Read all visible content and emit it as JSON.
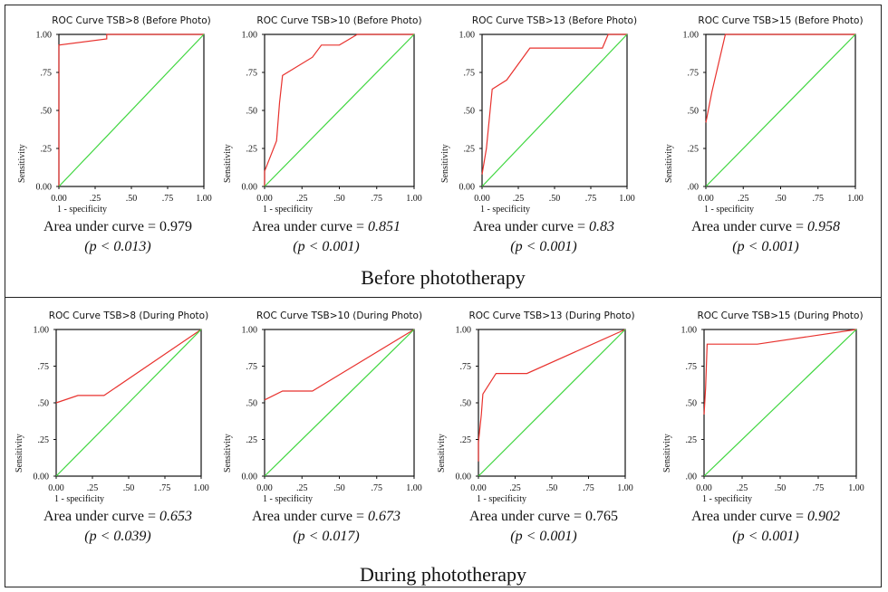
{
  "sections": [
    {
      "label": "Before  phototherapy"
    },
    {
      "label": "During phototherapy"
    }
  ],
  "chart_data": [
    {
      "type": "line",
      "title": "ROC Curve TSB>8 (Before Photo)",
      "xlabel": "1 - specificity",
      "ylabel": "Sensitivity",
      "xticks": [
        "0.00",
        ".25",
        ".50",
        ".75",
        "1.00"
      ],
      "yticks": [
        "0.00",
        ".25",
        ".50",
        ".75",
        "1.00"
      ],
      "xlim": [
        0,
        1
      ],
      "ylim": [
        0,
        1
      ],
      "series": [
        {
          "color": "#e8322e",
          "x": [
            0,
            0,
            0.33,
            0.33,
            1
          ],
          "y": [
            0,
            0.93,
            0.97,
            1,
            1
          ]
        },
        {
          "color": "#3fd63f",
          "x": [
            0,
            1
          ],
          "y": [
            0,
            1
          ]
        }
      ],
      "auc_label": "Area under curve = ",
      "auc": "0.979",
      "auc_italic": false,
      "p": "(p < 0.013)"
    },
    {
      "type": "line",
      "title": "ROC Curve TSB>10 (Before Photo)",
      "xlabel": "1 - specificity",
      "ylabel": "Sensitivity",
      "xticks": [
        "0.00",
        ".25",
        ".50",
        ".75",
        "1.00"
      ],
      "yticks": [
        "0.00",
        ".25",
        ".50",
        ".75",
        "1.00"
      ],
      "xlim": [
        0,
        1
      ],
      "ylim": [
        0,
        1
      ],
      "series": [
        {
          "color": "#e8322e",
          "x": [
            0,
            0,
            0.08,
            0.1,
            0.12,
            0.32,
            0.38,
            0.5,
            0.62,
            1
          ],
          "y": [
            0,
            0.1,
            0.3,
            0.55,
            0.73,
            0.85,
            0.93,
            0.93,
            1,
            1
          ]
        },
        {
          "color": "#3fd63f",
          "x": [
            0,
            1
          ],
          "y": [
            0,
            1
          ]
        }
      ],
      "auc_label": "Area under curve = ",
      "auc": "0.851",
      "auc_italic": true,
      "p": "(p < 0.001)"
    },
    {
      "type": "line",
      "title": "ROC Curve TSB>13 (Before Photo)",
      "xlabel": "1 - specificity",
      "ylabel": "Sensitivity",
      "xticks": [
        "0.00",
        ".25",
        ".50",
        ".75",
        "1.00"
      ],
      "yticks": [
        "0.00",
        ".25",
        ".50",
        ".75",
        "1.00"
      ],
      "xlim": [
        0,
        1
      ],
      "ylim": [
        0,
        1
      ],
      "series": [
        {
          "color": "#e8322e",
          "x": [
            0,
            0.03,
            0.07,
            0.17,
            0.33,
            0.83,
            0.87,
            1
          ],
          "y": [
            0.08,
            0.25,
            0.64,
            0.7,
            0.91,
            0.91,
            1,
            1
          ]
        },
        {
          "color": "#3fd63f",
          "x": [
            0,
            1
          ],
          "y": [
            0,
            1
          ]
        }
      ],
      "auc_label": "Area under curve = ",
      "auc": "0.83",
      "auc_italic": true,
      "p": "(p < 0.001)"
    },
    {
      "type": "line",
      "title": "ROC Curve TSB>15 (Before Photo)",
      "xlabel": "1 - specificity",
      "ylabel": "Sensitivity",
      "xticks": [
        "0.00",
        ".25",
        ".50",
        ".75",
        "1.00"
      ],
      "yticks": [
        ".00",
        ".25",
        ".50",
        ".75",
        "1.00"
      ],
      "xlim": [
        0,
        1
      ],
      "ylim": [
        0,
        1
      ],
      "series": [
        {
          "color": "#e8322e",
          "x": [
            0,
            0.04,
            0.13,
            1
          ],
          "y": [
            0.42,
            0.62,
            1,
            1
          ]
        },
        {
          "color": "#3fd63f",
          "x": [
            0,
            1
          ],
          "y": [
            0,
            1
          ]
        }
      ],
      "auc_label": "Area under curve = ",
      "auc": "0.958",
      "auc_italic": true,
      "p": "(p < 0.001)"
    },
    {
      "type": "line",
      "title": "ROC Curve TSB>8 (During Photo)",
      "xlabel": "1 - specificity",
      "ylabel": "Sensitivity",
      "xticks": [
        "0.00",
        ".25",
        ".50",
        ".75",
        "1.00"
      ],
      "yticks": [
        "0.00",
        ".25",
        ".50",
        ".75",
        "1.00"
      ],
      "xlim": [
        0,
        1
      ],
      "ylim": [
        0,
        1
      ],
      "series": [
        {
          "color": "#e8322e",
          "x": [
            0,
            0.15,
            0.33,
            1
          ],
          "y": [
            0.5,
            0.55,
            0.55,
            1
          ]
        },
        {
          "color": "#3fd63f",
          "x": [
            0,
            1
          ],
          "y": [
            0,
            1
          ]
        }
      ],
      "auc_label": "Area under curve = ",
      "auc": "0.653",
      "auc_italic": true,
      "p": "(p < 0.039)"
    },
    {
      "type": "line",
      "title": "ROC Curve TSB>10 (During Photo)",
      "xlabel": "1 - specificity",
      "ylabel": "Sensitivity",
      "xticks": [
        "0.00",
        ".25",
        ".50",
        ".75",
        "1.00"
      ],
      "yticks": [
        "0.00",
        ".25",
        ".50",
        ".75",
        "1.00"
      ],
      "xlim": [
        0,
        1
      ],
      "ylim": [
        0,
        1
      ],
      "series": [
        {
          "color": "#e8322e",
          "x": [
            0,
            0.12,
            0.32,
            1
          ],
          "y": [
            0.52,
            0.58,
            0.58,
            1
          ]
        },
        {
          "color": "#3fd63f",
          "x": [
            0,
            1
          ],
          "y": [
            0,
            1
          ]
        }
      ],
      "auc_label": "Area under curve = ",
      "auc": "0.673",
      "auc_italic": true,
      "p": "(p < 0.017)"
    },
    {
      "type": "line",
      "title": "ROC Curve TSB>13 (During Photo)",
      "xlabel": "1 - specificity",
      "ylabel": "Sensitivity",
      "xticks": [
        "0.00",
        ".25",
        ".50",
        ".75",
        "1.00"
      ],
      "yticks": [
        "0.00",
        ".25",
        ".50",
        ".75",
        "1.00"
      ],
      "xlim": [
        0,
        1
      ],
      "ylim": [
        0,
        1
      ],
      "series": [
        {
          "color": "#e8322e",
          "x": [
            0,
            0,
            0.02,
            0.03,
            0.12,
            0.33,
            1
          ],
          "y": [
            0.1,
            0.23,
            0.42,
            0.56,
            0.7,
            0.7,
            1
          ]
        },
        {
          "color": "#3fd63f",
          "x": [
            0,
            1
          ],
          "y": [
            0,
            1
          ]
        }
      ],
      "auc_label": "Area under curve = ",
      "auc": "0.765",
      "auc_italic": false,
      "p": "(p < 0.001)"
    },
    {
      "type": "line",
      "title": "ROC Curve TSB>15 (During Photo)",
      "xlabel": "1 - specificity",
      "ylabel": "Sensitivity",
      "xticks": [
        "0.00",
        ".25",
        ".50",
        ".75",
        "1.00"
      ],
      "yticks": [
        ".00",
        ".25",
        ".50",
        ".75",
        "1.00"
      ],
      "xlim": [
        0,
        1
      ],
      "ylim": [
        0,
        1
      ],
      "series": [
        {
          "color": "#e8322e",
          "x": [
            0,
            0.01,
            0.02,
            0.35,
            1
          ],
          "y": [
            0.42,
            0.6,
            0.9,
            0.9,
            1
          ]
        },
        {
          "color": "#3fd63f",
          "x": [
            0,
            1
          ],
          "y": [
            0,
            1
          ]
        }
      ],
      "auc_label": "Area under curve = ",
      "auc": "0.902",
      "auc_italic": true,
      "p": "(p < 0.001)"
    }
  ]
}
